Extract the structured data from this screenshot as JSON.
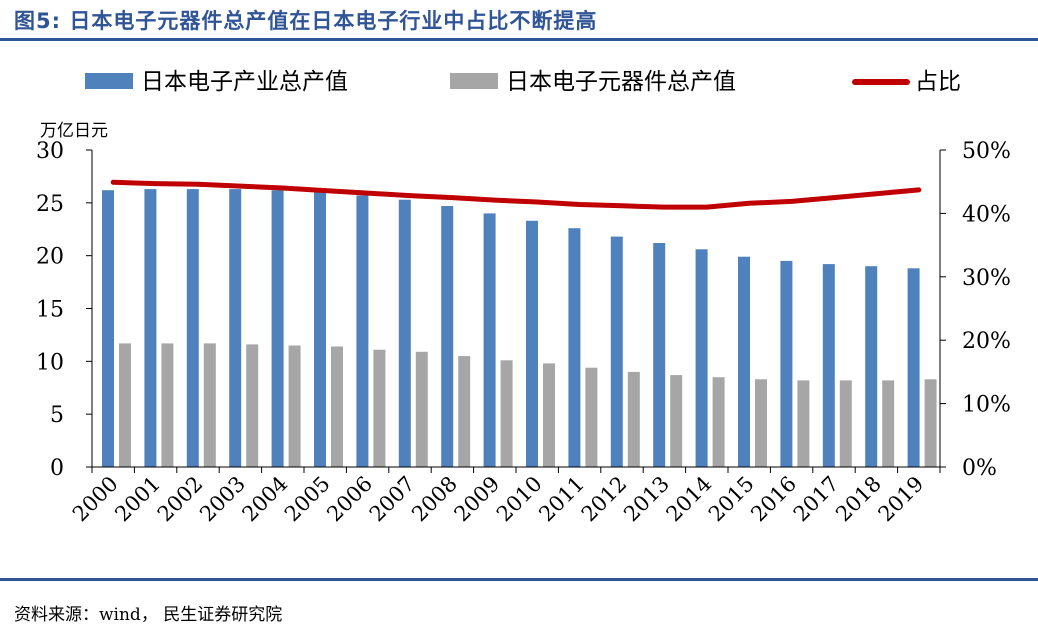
{
  "header": {
    "title": "图5: 日本电子元器件总产值在日本电子行业中占比不断提高"
  },
  "footer": {
    "source": "资料来源：wind， 民生证券研究院"
  },
  "colors": {
    "title": "#2f5597",
    "bar_total": "#4f81bd",
    "bar_components": "#a6a6a6",
    "line_ratio": "#c00000"
  },
  "chart_data": {
    "type": "bar",
    "categories": [
      "2000",
      "2001",
      "2002",
      "2003",
      "2004",
      "2005",
      "2006",
      "2007",
      "2008",
      "2009",
      "2010",
      "2011",
      "2012",
      "2013",
      "2014",
      "2015",
      "2016",
      "2017",
      "2018",
      "2019"
    ],
    "unit_label": "万亿日元",
    "series": [
      {
        "name": "日本电子产业总产值",
        "type": "bar",
        "axis": "left",
        "values": [
          26.2,
          26.3,
          26.3,
          26.3,
          26.2,
          26.1,
          25.7,
          25.3,
          24.7,
          24.0,
          23.3,
          22.6,
          21.8,
          21.2,
          20.6,
          19.9,
          19.5,
          19.2,
          19.0,
          18.8
        ]
      },
      {
        "name": "日本电子元器件总产值",
        "type": "bar",
        "axis": "left",
        "values": [
          11.7,
          11.7,
          11.7,
          11.6,
          11.5,
          11.4,
          11.1,
          10.9,
          10.5,
          10.1,
          9.8,
          9.4,
          9.0,
          8.7,
          8.5,
          8.3,
          8.2,
          8.2,
          8.2,
          8.3
        ]
      },
      {
        "name": "占比",
        "type": "line",
        "axis": "right",
        "values": [
          0.449,
          0.447,
          0.446,
          0.443,
          0.44,
          0.436,
          0.432,
          0.428,
          0.425,
          0.421,
          0.418,
          0.414,
          0.412,
          0.41,
          0.41,
          0.416,
          0.419,
          0.425,
          0.431,
          0.437
        ]
      }
    ],
    "y_left": {
      "ylim": [
        0,
        30
      ],
      "ticks": [
        "0",
        "5",
        "10",
        "15",
        "20",
        "25",
        "30"
      ]
    },
    "y_right": {
      "ylim": [
        0,
        0.5
      ],
      "ticks": [
        "0%",
        "10%",
        "20%",
        "30%",
        "40%",
        "50%"
      ]
    },
    "legend_position": "top",
    "grid": false
  }
}
